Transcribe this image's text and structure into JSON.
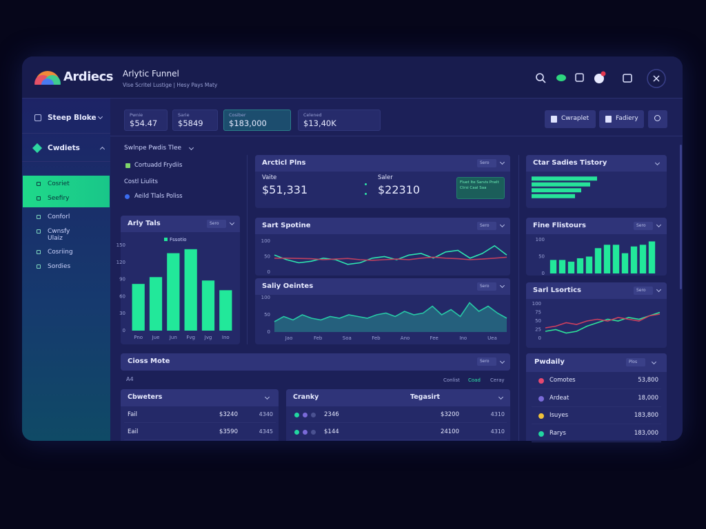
{
  "header": {
    "logo": "Ardiecs",
    "title": "Arlytic Funnel",
    "subtitle": "Vise Scritel Lustige | Hesy Pays Maty"
  },
  "sidebar": {
    "menu": "Steep Bloke",
    "section": "Cwdiets",
    "items": [
      "Cosriet",
      "Seefiry",
      "Conforl",
      "Cwnsfy Ulaiz",
      "Cosriing",
      "Sordies"
    ],
    "highlighted": [
      0,
      1
    ]
  },
  "stats": {
    "items": [
      {
        "label": "Pwnie",
        "value": "$54.47"
      },
      {
        "label": "Sarie",
        "value": "$5849"
      },
      {
        "label": "Cosiber",
        "value": "$183,000"
      },
      {
        "label": "Celened",
        "value": "$13,40K"
      }
    ],
    "highlighted": 2
  },
  "actions": [
    "Cwraplet",
    "Fadiery"
  ],
  "filters": {
    "title": "Swlnpe Pwdis Tlee",
    "items": [
      "Cortuadd Frydiis",
      "Costl Liulits",
      "Aeild Tlals Poliss"
    ]
  },
  "funnel": {
    "title": "Arcticl Plns",
    "control": "Sero",
    "kpis": [
      {
        "label": "Vaite",
        "value": "$51,331"
      },
      {
        "label": "Saler",
        "value": "$22310"
      }
    ],
    "note": "Fluet Ite Sarvis Pnelt Ctrsi Caal Saa"
  },
  "chart_data": [
    {
      "type": "bar",
      "title": "Arly Tals",
      "control": "Sero",
      "categories": [
        "Pno",
        "Jue",
        "Jun",
        "Fvg",
        "Jvg",
        "Ino"
      ],
      "series": [
        {
          "name": "Fssotio",
          "color": "#22e89a",
          "values": [
            82,
            94,
            136,
            143,
            88,
            71
          ]
        }
      ],
      "ylim": [
        0,
        150
      ],
      "yticks": [
        0,
        30,
        60,
        90,
        120,
        150
      ]
    },
    {
      "type": "line",
      "title": "Sart Spotine",
      "control": "Sero",
      "series": [
        {
          "color": "#2ee6b0",
          "values": [
            55,
            40,
            30,
            35,
            45,
            40,
            25,
            30,
            45,
            50,
            40,
            55,
            60,
            45,
            65,
            70,
            45,
            60,
            85,
            55
          ]
        },
        {
          "color": "#c2405e",
          "values": [
            45,
            45,
            44,
            43,
            40,
            42,
            44,
            40,
            38,
            40,
            42,
            40,
            45,
            48,
            45,
            43,
            40,
            42,
            45,
            48
          ]
        }
      ],
      "ylim": [
        0,
        100
      ],
      "yticks": [
        0,
        50,
        100
      ]
    },
    {
      "type": "area",
      "title": "Saliy Oeintes",
      "control": "Sero",
      "x_labels": [
        "Jao",
        "Feb",
        "Soa",
        "Feb",
        "Ano",
        "Fee",
        "Ino",
        "Uea"
      ],
      "series": [
        {
          "color": "#27c9a6",
          "values": [
            30,
            45,
            35,
            50,
            40,
            35,
            45,
            40,
            50,
            45,
            40,
            50,
            55,
            45,
            60,
            50,
            55,
            75,
            50,
            65,
            45,
            85,
            60,
            75,
            55,
            40
          ]
        }
      ],
      "ylim": [
        0,
        100
      ],
      "yticks": [
        0,
        50,
        100
      ]
    },
    {
      "type": "hbar",
      "title": "Ctar Sadies Tistory",
      "series": [
        {
          "color": "#27e39a",
          "values": [
            95,
            85,
            72,
            63
          ]
        }
      ],
      "xlim": [
        0,
        100
      ]
    },
    {
      "type": "bar",
      "title": "Fine Flistours",
      "control": "Sero",
      "series": [
        {
          "color": "#22e89a",
          "values": [
            40,
            40,
            35,
            45,
            50,
            75,
            85,
            85,
            60,
            80,
            85,
            95
          ]
        }
      ],
      "ylim": [
        0,
        100
      ],
      "yticks": [
        0,
        50,
        100
      ]
    },
    {
      "type": "line",
      "title": "Sarl Lsortics",
      "control": "Sero",
      "series": [
        {
          "color": "#2ee69a",
          "values": [
            20,
            25,
            15,
            20,
            35,
            45,
            55,
            50,
            60,
            55,
            65,
            75
          ]
        },
        {
          "color": "#d0405e",
          "values": [
            30,
            35,
            45,
            40,
            50,
            55,
            50,
            60,
            55,
            50,
            65,
            70
          ]
        }
      ],
      "ylim": [
        0,
        100
      ],
      "yticks": [
        0,
        25,
        50,
        75,
        100
      ]
    }
  ],
  "tables": {
    "title": "Cioss Mote",
    "count": "A4",
    "control": "Sero",
    "tabs": [
      "Conlist",
      "Coad",
      "Ceray"
    ],
    "active_tab": 1,
    "left": {
      "header": "Cbweters",
      "rows": [
        [
          "Fail",
          "$3240",
          "4340"
        ],
        [
          "Eail",
          "$3590",
          "4345"
        ]
      ]
    },
    "right": {
      "headers": [
        "Cranky",
        "Tegasirt"
      ],
      "rows": [
        [
          "2346",
          "$3200",
          "4310"
        ],
        [
          "$144",
          "24100",
          "4310"
        ]
      ]
    }
  },
  "list": {
    "title": "Pwdaily",
    "control": "Plos",
    "rows": [
      {
        "label": "Comotes",
        "value": "53,800",
        "color": "#e5486f"
      },
      {
        "label": "Ardeat",
        "value": "18,000",
        "color": "#7a6ad8"
      },
      {
        "label": "Isuyes",
        "value": "183,800",
        "color": "#f0c23a"
      },
      {
        "label": "Rarys",
        "value": "183,000",
        "color": "#22d6a0"
      }
    ]
  }
}
